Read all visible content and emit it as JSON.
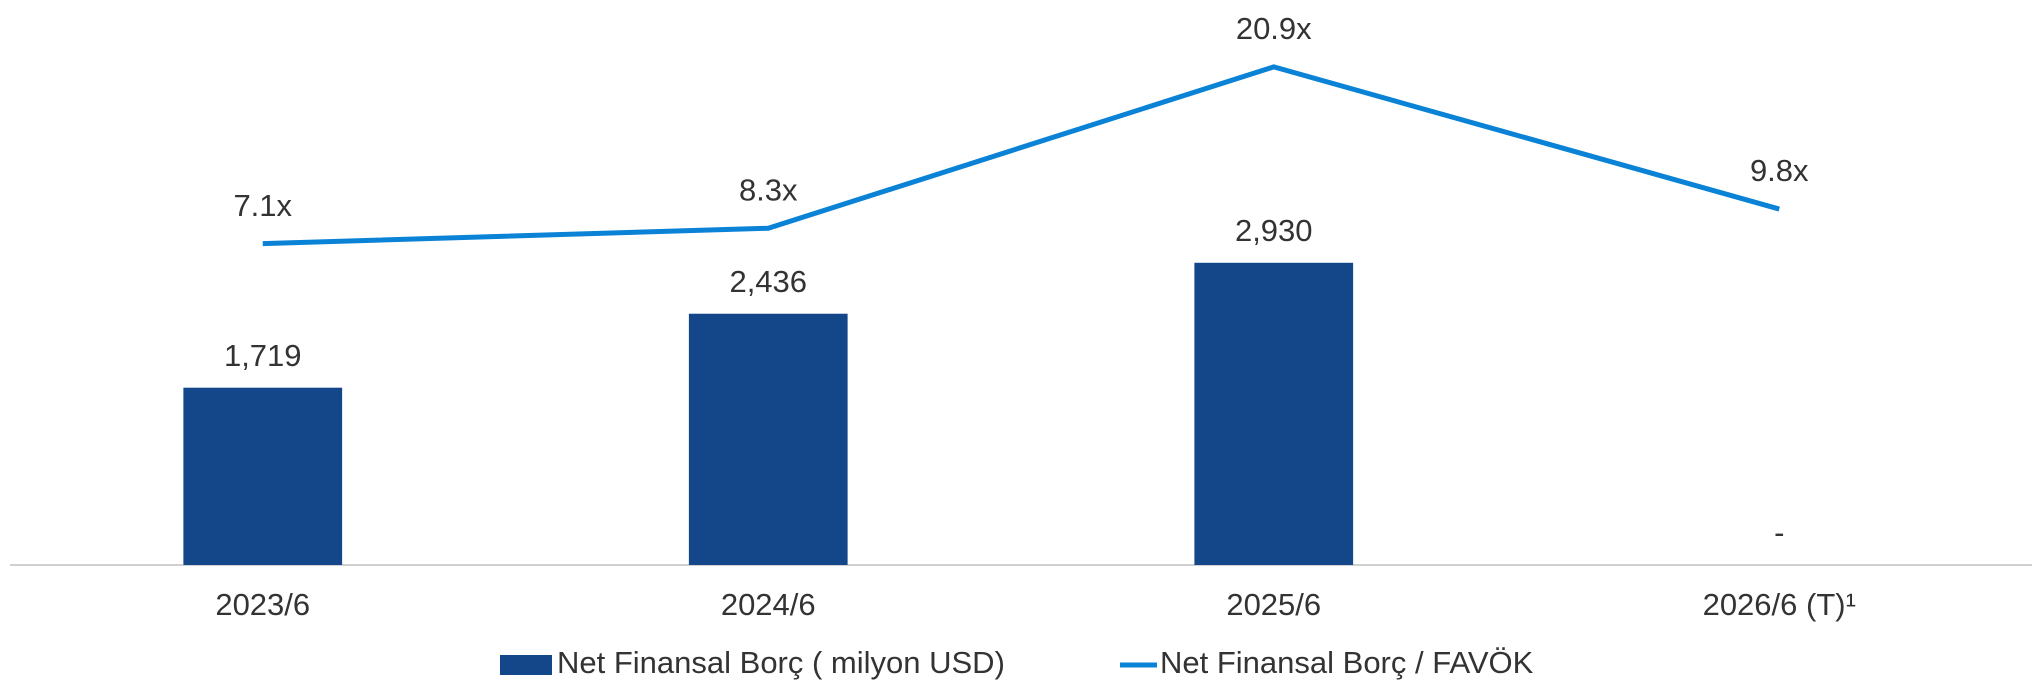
{
  "chart_data": {
    "type": "bar-line",
    "categories": [
      "2023/6",
      "2024/6",
      "2025/6",
      "2026/6 (T)¹"
    ],
    "series": [
      {
        "name": "Net Finansal Borç  ( milyon USD)",
        "type": "bar",
        "color": "#14478a",
        "values": [
          1719,
          2436,
          2930,
          null
        ],
        "value_labels": [
          "1,719",
          "2,436",
          "2,930",
          "-"
        ]
      },
      {
        "name": "Net Finansal Borç / FAVÖK",
        "type": "line",
        "axis": "y2",
        "color": "#0a82d6",
        "values": [
          7.1,
          8.3,
          20.9,
          9.8
        ],
        "value_labels": [
          "7.1x",
          "8.3x",
          "20.9x",
          "9.8x"
        ]
      }
    ],
    "ylim": [
      0,
      5400
    ],
    "y2lim": [
      -18,
      25.5
    ],
    "legend": "bottom"
  }
}
